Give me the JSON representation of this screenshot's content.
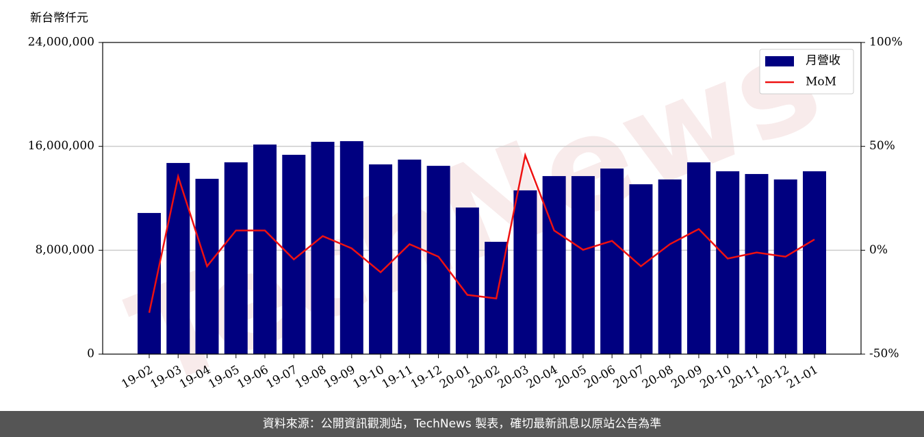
{
  "chart_data": {
    "type": "bar_line",
    "y_label": "新台幣仟元",
    "watermark": "TechNews",
    "categories": [
      "19-02",
      "19-03",
      "19-04",
      "19-05",
      "19-06",
      "19-07",
      "19-08",
      "19-09",
      "19-10",
      "19-11",
      "19-12",
      "20-01",
      "20-02",
      "20-03",
      "20-04",
      "20-05",
      "20-06",
      "20-07",
      "20-08",
      "20-09",
      "20-10",
      "20-11",
      "20-12",
      "21-01"
    ],
    "series": [
      {
        "name": "月營收",
        "type": "bar",
        "color": "#000080",
        "values": [
          10870000,
          14720000,
          13500000,
          14770000,
          16140000,
          15350000,
          16350000,
          16400000,
          14610000,
          14980000,
          14500000,
          11290000,
          8650000,
          12610000,
          13710000,
          13710000,
          14290000,
          13080000,
          13450000,
          14770000,
          14080000,
          13870000,
          13450000,
          14080000
        ]
      },
      {
        "name": "MoM",
        "type": "line",
        "color": "#ee1111",
        "axis": "y2",
        "values": [
          -30.1,
          35.5,
          -7.7,
          9.5,
          9.5,
          -4.4,
          6.8,
          0.9,
          -10.6,
          2.9,
          -3.1,
          -21.5,
          -23.2,
          45.7,
          9.5,
          0.2,
          4.5,
          -7.7,
          2.9,
          10.2,
          -4.0,
          -1.1,
          -3.1,
          5.2
        ]
      }
    ],
    "ylim": [
      0,
      24000000
    ],
    "yticks": [
      {
        "value": 0,
        "label": "0"
      },
      {
        "value": 8000000,
        "label": "8,000,000"
      },
      {
        "value": 16000000,
        "label": "16,000,000"
      },
      {
        "value": 24000000,
        "label": "24,000,000"
      }
    ],
    "y2lim": [
      -50,
      100
    ],
    "y2ticks": [
      {
        "value": -50,
        "label": "-50%"
      },
      {
        "value": 0,
        "label": "0%"
      },
      {
        "value": 50,
        "label": "50%"
      },
      {
        "value": 100,
        "label": "100%"
      }
    ],
    "grid": true,
    "legend": "upper right",
    "footer": "資料來源：公開資訊觀測站，TechNews 製表，確切最新訊息以原站公告為準"
  }
}
